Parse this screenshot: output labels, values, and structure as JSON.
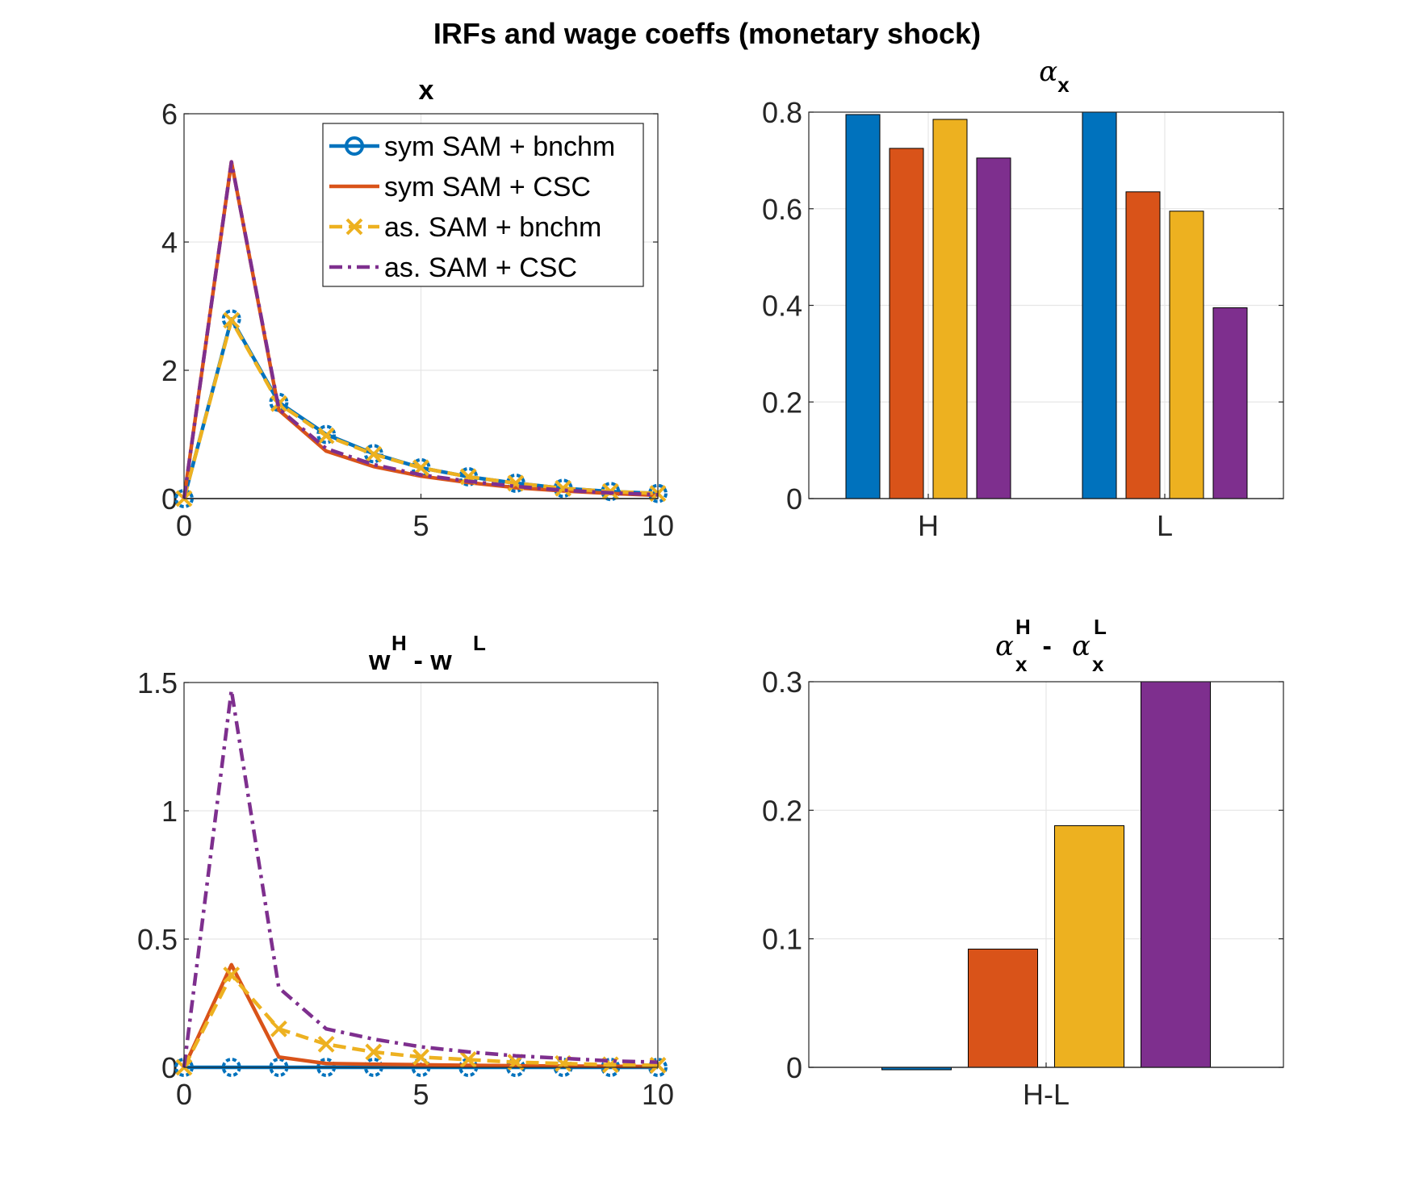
{
  "figure": {
    "suptitle": "IRFs and wage coeffs (monetary shock)"
  },
  "colors": {
    "blue": "#0072BD",
    "orange": "#D95319",
    "yellow": "#EDB120",
    "purple": "#7E2F8E",
    "grid": "#e6e6e6",
    "axis": "#262626"
  },
  "chart_data": [
    {
      "id": "x",
      "type": "line",
      "title": "x",
      "xlim": [
        0,
        10
      ],
      "ylim": [
        0,
        6
      ],
      "xticks": [
        0,
        5,
        10
      ],
      "yticks": [
        0,
        2,
        4,
        6
      ],
      "grid": true,
      "legend_location": "top-right",
      "x": [
        0,
        1,
        2,
        3,
        4,
        5,
        6,
        7,
        8,
        9,
        10
      ],
      "series": [
        {
          "name": "sym SAM + bnchm",
          "color": "#0072BD",
          "line": "solid",
          "marker": "o",
          "values": [
            0,
            2.8,
            1.5,
            1.0,
            0.7,
            0.48,
            0.34,
            0.24,
            0.16,
            0.11,
            0.08
          ]
        },
        {
          "name": "sym SAM + CSC",
          "color": "#D95319",
          "line": "solid",
          "marker": "none",
          "values": [
            0,
            5.25,
            1.38,
            0.74,
            0.5,
            0.35,
            0.25,
            0.17,
            0.12,
            0.08,
            0.05
          ]
        },
        {
          "name": "as. SAM + bnchm",
          "color": "#EDB120",
          "line": "dashed",
          "marker": "x",
          "values": [
            0,
            2.78,
            1.48,
            0.98,
            0.69,
            0.48,
            0.34,
            0.24,
            0.16,
            0.11,
            0.08
          ]
        },
        {
          "name": "as. SAM + CSC",
          "color": "#7E2F8E",
          "line": "dashdot",
          "marker": "none",
          "values": [
            0,
            5.25,
            1.4,
            0.78,
            0.53,
            0.37,
            0.27,
            0.19,
            0.13,
            0.09,
            0.06
          ]
        }
      ]
    },
    {
      "id": "alpha_x",
      "type": "bar",
      "title": "α_x",
      "title_main": "α",
      "title_sub": "x",
      "categories": [
        "H",
        "L"
      ],
      "ylim": [
        0,
        0.8
      ],
      "yticks": [
        0,
        0.2,
        0.4,
        0.6,
        0.8
      ],
      "ytick_labels": [
        "0",
        "0.2",
        "0.4",
        "0.6",
        "0.8"
      ],
      "grid": true,
      "series": [
        {
          "color": "#0072BD",
          "values": [
            0.795,
            0.8
          ]
        },
        {
          "color": "#D95319",
          "values": [
            0.725,
            0.635
          ]
        },
        {
          "color": "#EDB120",
          "values": [
            0.785,
            0.595
          ]
        },
        {
          "color": "#7E2F8E",
          "values": [
            0.705,
            0.395
          ]
        }
      ]
    },
    {
      "id": "wage_gap",
      "type": "line",
      "title": "w^H - w^L",
      "title_parts": [
        "w",
        "H",
        " - w",
        "L"
      ],
      "xlim": [
        0,
        10
      ],
      "ylim": [
        0,
        1.5
      ],
      "xticks": [
        0,
        5,
        10
      ],
      "yticks": [
        0,
        0.5,
        1,
        1.5
      ],
      "ytick_labels": [
        "0",
        "0.5",
        "1",
        "1.5"
      ],
      "grid": true,
      "x": [
        0,
        1,
        2,
        3,
        4,
        5,
        6,
        7,
        8,
        9,
        10
      ],
      "series": [
        {
          "color": "#0072BD",
          "line": "solid",
          "marker": "o",
          "values": [
            0,
            0,
            0,
            0,
            0,
            0,
            0,
            0,
            0,
            0,
            0
          ]
        },
        {
          "color": "#D95319",
          "line": "solid",
          "marker": "none",
          "values": [
            0,
            0.4,
            0.04,
            0.015,
            0.012,
            0.01,
            0.008,
            0.006,
            0.005,
            0.004,
            0.003
          ]
        },
        {
          "color": "#EDB120",
          "line": "dashed",
          "marker": "x",
          "values": [
            0,
            0.36,
            0.15,
            0.09,
            0.06,
            0.04,
            0.03,
            0.02,
            0.015,
            0.01,
            0.008
          ]
        },
        {
          "color": "#7E2F8E",
          "line": "dashdot",
          "marker": "none",
          "values": [
            0,
            1.47,
            0.31,
            0.15,
            0.11,
            0.08,
            0.06,
            0.045,
            0.035,
            0.025,
            0.02
          ]
        }
      ]
    },
    {
      "id": "alpha_diff",
      "type": "bar",
      "title": "α_x^H - α_x^L",
      "title_parts": [
        "α",
        "x",
        "H",
        " - ",
        "α",
        "x",
        "L"
      ],
      "categories": [
        "H-L"
      ],
      "ylim": [
        0,
        0.3
      ],
      "yticks": [
        0,
        0.1,
        0.2,
        0.3
      ],
      "ytick_labels": [
        "0",
        "0.1",
        "0.2",
        "0.3"
      ],
      "grid": true,
      "series": [
        {
          "color": "#0072BD",
          "values": [
            -0.005
          ]
        },
        {
          "color": "#D95319",
          "values": [
            0.092
          ]
        },
        {
          "color": "#EDB120",
          "values": [
            0.188
          ]
        },
        {
          "color": "#7E2F8E",
          "values": [
            0.31
          ]
        }
      ]
    }
  ]
}
